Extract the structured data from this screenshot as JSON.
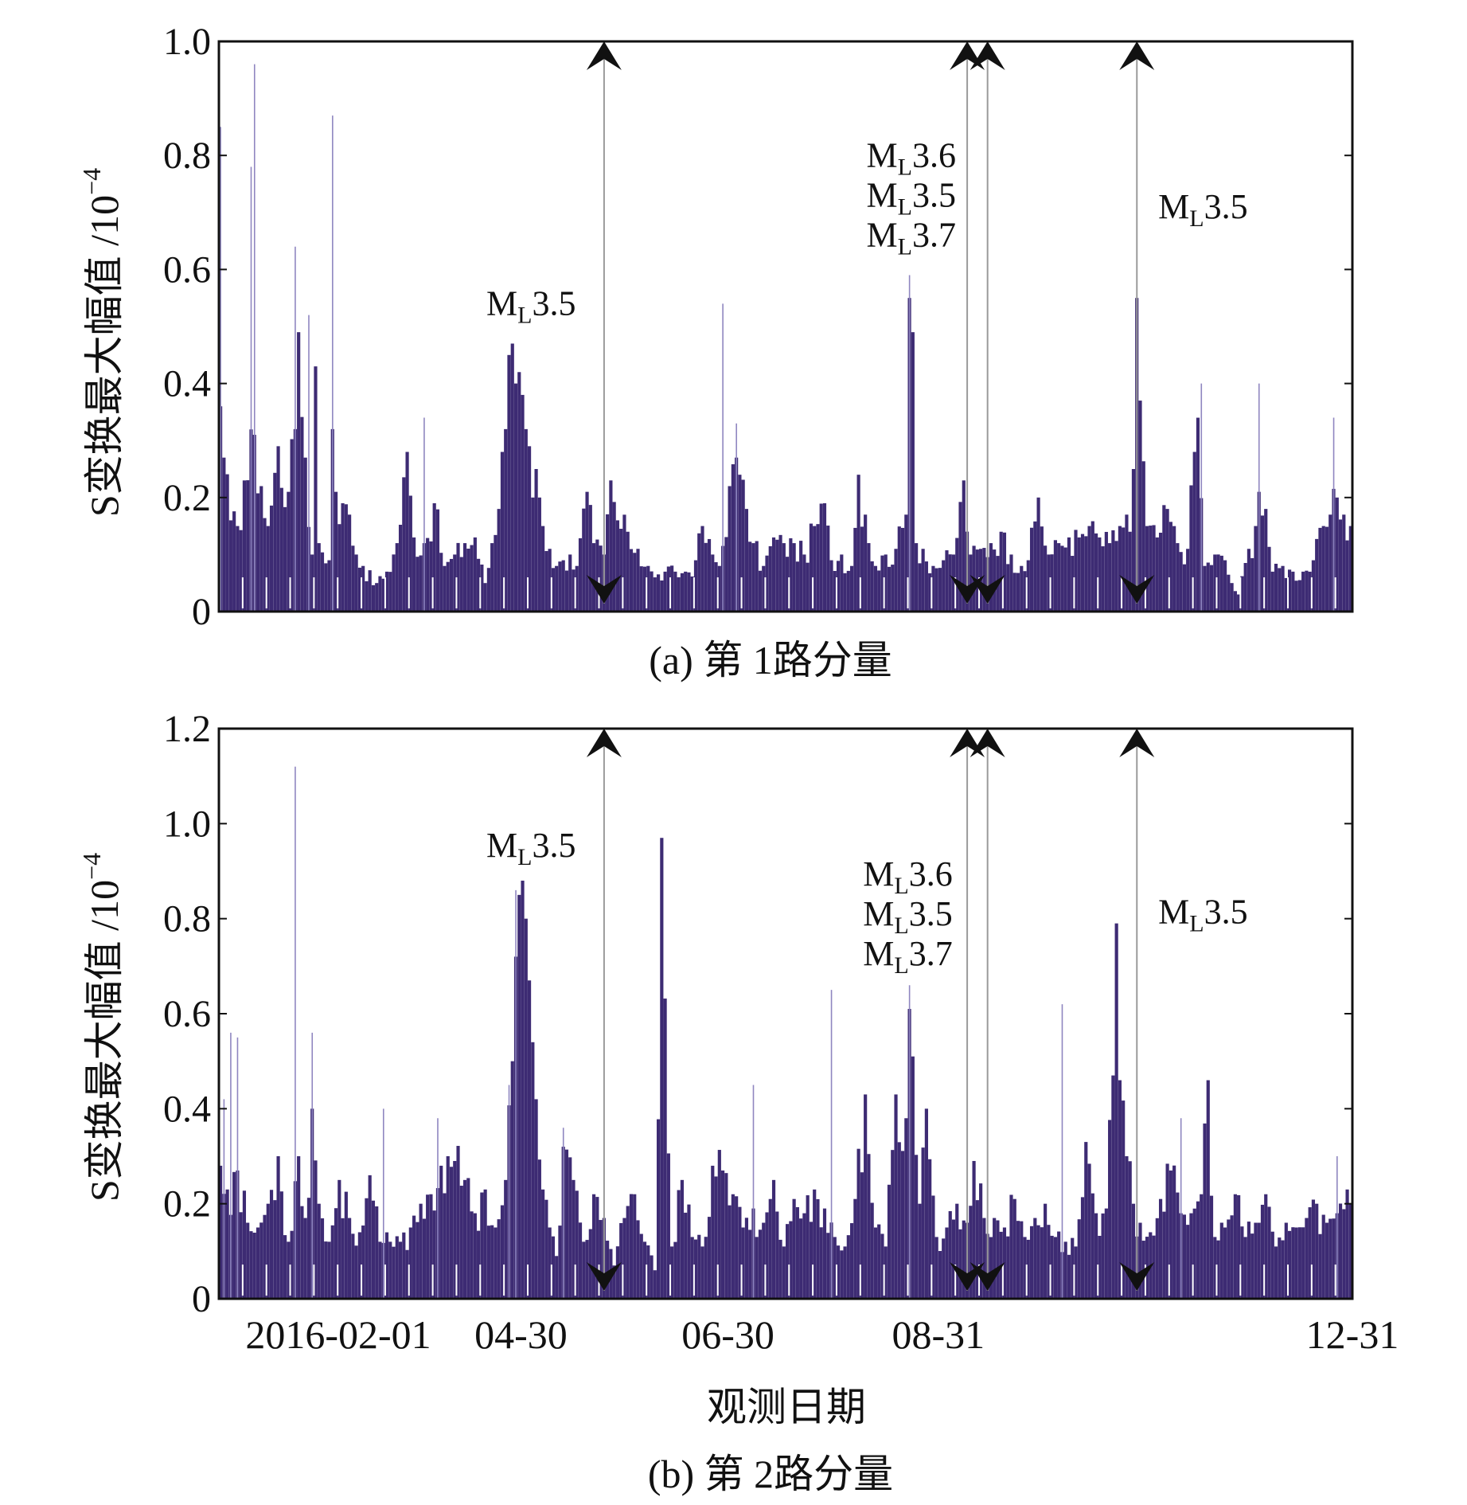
{
  "figure": {
    "xlabel": "观测日期",
    "bar_color": "#3d2b73",
    "arrow_line_color": "#9a9a9a",
    "arrow_color": "#111111"
  },
  "chart_data": [
    {
      "id": "a",
      "type": "bar",
      "caption": "(a) 第 1路分量",
      "ylabel_main": "S变换最大幅值 /10",
      "ylabel_exp": "−4",
      "ylim": [
        0,
        1.0
      ],
      "yticks": [
        0,
        0.2,
        0.4,
        0.6,
        0.8,
        1.0
      ],
      "ytick_labels": [
        "0",
        "0.2",
        "0.4",
        "0.6",
        "0.8",
        "1.0"
      ],
      "x_start_date": "2016-02-01",
      "n_days": 334,
      "event_days": [
        113,
        220,
        226,
        270
      ],
      "annotations": [
        {
          "day": 92,
          "level": 0.52,
          "lines": [
            "3.5"
          ]
        },
        {
          "day": 204,
          "level": 0.78,
          "lines": [
            "3.6",
            "3.5",
            "3.7"
          ]
        },
        {
          "day": 290,
          "level": 0.69,
          "lines": [
            "3.5"
          ]
        }
      ],
      "peaks": [
        [
          0,
          0.36
        ],
        [
          1,
          0.27
        ],
        [
          3,
          0.16
        ],
        [
          5,
          0.15
        ],
        [
          7,
          0.23
        ],
        [
          10,
          0.31
        ],
        [
          12,
          0.22
        ],
        [
          14,
          0.15
        ],
        [
          17,
          0.29
        ],
        [
          20,
          0.21
        ],
        [
          22,
          0.32
        ],
        [
          23,
          0.49
        ],
        [
          25,
          0.27
        ],
        [
          27,
          0.1
        ],
        [
          28,
          0.43
        ],
        [
          29,
          0.12
        ],
        [
          32,
          0.09
        ],
        [
          33,
          0.32
        ],
        [
          34,
          0.21
        ],
        [
          36,
          0.19
        ],
        [
          38,
          0.17
        ],
        [
          40,
          0.1
        ],
        [
          42,
          0.08
        ],
        [
          46,
          0.05
        ],
        [
          49,
          0.07
        ],
        [
          52,
          0.12
        ],
        [
          55,
          0.28
        ],
        [
          57,
          0.13
        ],
        [
          60,
          0.12
        ],
        [
          63,
          0.19
        ],
        [
          66,
          0.08
        ],
        [
          69,
          0.1
        ],
        [
          72,
          0.12
        ],
        [
          75,
          0.13
        ],
        [
          78,
          0.05
        ],
        [
          80,
          0.12
        ],
        [
          82,
          0.18
        ],
        [
          83,
          0.28
        ],
        [
          84,
          0.32
        ],
        [
          85,
          0.45
        ],
        [
          86,
          0.47
        ],
        [
          87,
          0.4
        ],
        [
          88,
          0.42
        ],
        [
          89,
          0.38
        ],
        [
          90,
          0.32
        ],
        [
          91,
          0.29
        ],
        [
          92,
          0.2
        ],
        [
          93,
          0.25
        ],
        [
          94,
          0.2
        ],
        [
          95,
          0.15
        ],
        [
          97,
          0.11
        ],
        [
          99,
          0.08
        ],
        [
          101,
          0.09
        ],
        [
          103,
          0.1
        ],
        [
          105,
          0.08
        ],
        [
          108,
          0.21
        ],
        [
          110,
          0.12
        ],
        [
          113,
          0.1
        ],
        [
          115,
          0.23
        ],
        [
          117,
          0.16
        ],
        [
          120,
          0.14
        ],
        [
          123,
          0.11
        ],
        [
          126,
          0.08
        ],
        [
          128,
          0.06
        ],
        [
          131,
          0.07
        ],
        [
          134,
          0.07
        ],
        [
          137,
          0.07
        ],
        [
          140,
          0.09
        ],
        [
          142,
          0.15
        ],
        [
          145,
          0.1
        ],
        [
          147,
          0.08
        ],
        [
          150,
          0.22
        ],
        [
          152,
          0.27
        ],
        [
          153,
          0.24
        ],
        [
          155,
          0.18
        ],
        [
          157,
          0.12
        ],
        [
          160,
          0.08
        ],
        [
          163,
          0.13
        ],
        [
          166,
          0.12
        ],
        [
          169,
          0.12
        ],
        [
          172,
          0.1
        ],
        [
          175,
          0.15
        ],
        [
          178,
          0.19
        ],
        [
          180,
          0.09
        ],
        [
          183,
          0.1
        ],
        [
          186,
          0.08
        ],
        [
          188,
          0.24
        ],
        [
          190,
          0.17
        ],
        [
          193,
          0.08
        ],
        [
          196,
          0.1
        ],
        [
          199,
          0.11
        ],
        [
          202,
          0.17
        ],
        [
          203,
          0.55
        ],
        [
          204,
          0.49
        ],
        [
          205,
          0.12
        ],
        [
          207,
          0.11
        ],
        [
          210,
          0.08
        ],
        [
          213,
          0.09
        ],
        [
          216,
          0.1
        ],
        [
          219,
          0.23
        ],
        [
          221,
          0.1
        ],
        [
          224,
          0.11
        ],
        [
          227,
          0.12
        ],
        [
          230,
          0.14
        ],
        [
          233,
          0.1
        ],
        [
          236,
          0.08
        ],
        [
          238,
          0.09
        ],
        [
          241,
          0.2
        ],
        [
          244,
          0.1
        ],
        [
          247,
          0.12
        ],
        [
          250,
          0.13
        ],
        [
          253,
          0.13
        ],
        [
          256,
          0.15
        ],
        [
          259,
          0.13
        ],
        [
          262,
          0.12
        ],
        [
          265,
          0.15
        ],
        [
          267,
          0.17
        ],
        [
          268,
          0.14
        ],
        [
          269,
          0.25
        ],
        [
          270,
          0.55
        ],
        [
          271,
          0.37
        ],
        [
          273,
          0.15
        ],
        [
          276,
          0.13
        ],
        [
          279,
          0.18
        ],
        [
          282,
          0.12
        ],
        [
          285,
          0.11
        ],
        [
          287,
          0.28
        ],
        [
          288,
          0.34
        ],
        [
          290,
          0.08
        ],
        [
          293,
          0.1
        ],
        [
          296,
          0.09
        ],
        [
          298,
          0.05
        ],
        [
          300,
          0.03
        ],
        [
          303,
          0.11
        ],
        [
          305,
          0.15
        ],
        [
          306,
          0.21
        ],
        [
          308,
          0.18
        ],
        [
          310,
          0.07
        ],
        [
          313,
          0.08
        ],
        [
          316,
          0.07
        ],
        [
          319,
          0.07
        ],
        [
          322,
          0.09
        ],
        [
          325,
          0.15
        ],
        [
          327,
          0.17
        ],
        [
          329,
          0.2
        ],
        [
          331,
          0.17
        ],
        [
          333,
          0.15
        ]
      ],
      "spikes": [
        [
          0,
          0.85
        ],
        [
          9,
          0.78
        ],
        [
          10,
          0.96
        ],
        [
          22,
          0.64
        ],
        [
          26,
          0.52
        ],
        [
          33,
          0.87
        ],
        [
          60,
          0.34
        ],
        [
          148,
          0.54
        ],
        [
          152,
          0.33
        ],
        [
          203,
          0.59
        ],
        [
          289,
          0.4
        ],
        [
          306,
          0.4
        ],
        [
          328,
          0.34
        ]
      ]
    },
    {
      "id": "b",
      "type": "bar",
      "caption": "(b) 第 2路分量",
      "ylabel_main": "S变换最大幅值 /10",
      "ylabel_exp": "−4",
      "ylim": [
        0,
        1.2
      ],
      "yticks": [
        0,
        0.2,
        0.4,
        0.6,
        0.8,
        1.0,
        1.2
      ],
      "ytick_labels": [
        "0",
        "0.2",
        "0.4",
        "0.6",
        "0.8",
        "1.0",
        "1.2"
      ],
      "x_start_date": "2016-02-01",
      "n_days": 334,
      "x_ticks": [
        {
          "day": 0,
          "label": "2016-02-01"
        },
        {
          "day": 89,
          "label": "04-30"
        },
        {
          "day": 150,
          "label": "06-30"
        },
        {
          "day": 212,
          "label": "08-31"
        },
        {
          "day": 334,
          "label": "12-31"
        }
      ],
      "event_days": [
        113,
        220,
        226,
        270
      ],
      "annotations": [
        {
          "day": 92,
          "level": 0.93,
          "lines": [
            "3.5"
          ]
        },
        {
          "day": 203,
          "level": 0.87,
          "lines": [
            "3.6",
            "3.5",
            "3.7"
          ]
        },
        {
          "day": 290,
          "level": 0.79,
          "lines": [
            "3.5"
          ]
        }
      ],
      "peaks": [
        [
          0,
          0.28
        ],
        [
          2,
          0.23
        ],
        [
          5,
          0.27
        ],
        [
          8,
          0.16
        ],
        [
          11,
          0.15
        ],
        [
          14,
          0.2
        ],
        [
          17,
          0.3
        ],
        [
          20,
          0.12
        ],
        [
          23,
          0.3
        ],
        [
          25,
          0.17
        ],
        [
          27,
          0.4
        ],
        [
          29,
          0.2
        ],
        [
          32,
          0.12
        ],
        [
          35,
          0.25
        ],
        [
          38,
          0.17
        ],
        [
          41,
          0.14
        ],
        [
          44,
          0.26
        ],
        [
          47,
          0.12
        ],
        [
          50,
          0.12
        ],
        [
          53,
          0.12
        ],
        [
          56,
          0.15
        ],
        [
          59,
          0.2
        ],
        [
          62,
          0.22
        ],
        [
          65,
          0.28
        ],
        [
          67,
          0.3
        ],
        [
          69,
          0.29
        ],
        [
          72,
          0.25
        ],
        [
          75,
          0.18
        ],
        [
          78,
          0.23
        ],
        [
          81,
          0.15
        ],
        [
          84,
          0.25
        ],
        [
          86,
          0.5
        ],
        [
          87,
          0.72
        ],
        [
          88,
          0.85
        ],
        [
          89,
          0.88
        ],
        [
          90,
          0.8
        ],
        [
          91,
          0.67
        ],
        [
          92,
          0.54
        ],
        [
          93,
          0.42
        ],
        [
          95,
          0.23
        ],
        [
          97,
          0.15
        ],
        [
          99,
          0.09
        ],
        [
          101,
          0.32
        ],
        [
          104,
          0.25
        ],
        [
          107,
          0.12
        ],
        [
          110,
          0.22
        ],
        [
          113,
          0.17
        ],
        [
          116,
          0.07
        ],
        [
          119,
          0.17
        ],
        [
          122,
          0.22
        ],
        [
          125,
          0.12
        ],
        [
          128,
          0.06
        ],
        [
          130,
          0.97
        ],
        [
          133,
          0.11
        ],
        [
          136,
          0.25
        ],
        [
          139,
          0.13
        ],
        [
          142,
          0.11
        ],
        [
          145,
          0.28
        ],
        [
          148,
          0.27
        ],
        [
          151,
          0.22
        ],
        [
          154,
          0.15
        ],
        [
          157,
          0.19
        ],
        [
          160,
          0.16
        ],
        [
          163,
          0.25
        ],
        [
          166,
          0.11
        ],
        [
          169,
          0.21
        ],
        [
          172,
          0.18
        ],
        [
          175,
          0.23
        ],
        [
          178,
          0.19
        ],
        [
          181,
          0.13
        ],
        [
          184,
          0.11
        ],
        [
          187,
          0.21
        ],
        [
          190,
          0.43
        ],
        [
          193,
          0.15
        ],
        [
          196,
          0.11
        ],
        [
          199,
          0.43
        ],
        [
          202,
          0.38
        ],
        [
          203,
          0.61
        ],
        [
          204,
          0.51
        ],
        [
          206,
          0.2
        ],
        [
          208,
          0.4
        ],
        [
          211,
          0.13
        ],
        [
          214,
          0.15
        ],
        [
          217,
          0.2
        ],
        [
          220,
          0.16
        ],
        [
          222,
          0.29
        ],
        [
          225,
          0.17
        ],
        [
          228,
          0.17
        ],
        [
          231,
          0.15
        ],
        [
          234,
          0.21
        ],
        [
          237,
          0.13
        ],
        [
          240,
          0.17
        ],
        [
          243,
          0.2
        ],
        [
          246,
          0.13
        ],
        [
          249,
          0.12
        ],
        [
          252,
          0.11
        ],
        [
          255,
          0.33
        ],
        [
          258,
          0.18
        ],
        [
          261,
          0.19
        ],
        [
          263,
          0.47
        ],
        [
          264,
          0.79
        ],
        [
          265,
          0.46
        ],
        [
          267,
          0.3
        ],
        [
          269,
          0.2
        ],
        [
          271,
          0.16
        ],
        [
          274,
          0.14
        ],
        [
          277,
          0.21
        ],
        [
          280,
          0.27
        ],
        [
          283,
          0.18
        ],
        [
          286,
          0.18
        ],
        [
          289,
          0.22
        ],
        [
          291,
          0.46
        ],
        [
          293,
          0.13
        ],
        [
          296,
          0.15
        ],
        [
          299,
          0.22
        ],
        [
          302,
          0.13
        ],
        [
          305,
          0.16
        ],
        [
          308,
          0.22
        ],
        [
          311,
          0.11
        ],
        [
          314,
          0.16
        ],
        [
          317,
          0.15
        ],
        [
          320,
          0.17
        ],
        [
          323,
          0.2
        ],
        [
          326,
          0.16
        ],
        [
          329,
          0.18
        ],
        [
          332,
          0.23
        ],
        [
          333,
          0.2
        ]
      ],
      "spikes": [
        [
          1,
          0.42
        ],
        [
          3,
          0.56
        ],
        [
          5,
          0.55
        ],
        [
          22,
          1.12
        ],
        [
          27,
          0.56
        ],
        [
          48,
          0.4
        ],
        [
          64,
          0.38
        ],
        [
          85,
          0.45
        ],
        [
          87,
          0.86
        ],
        [
          101,
          0.36
        ],
        [
          157,
          0.45
        ],
        [
          180,
          0.65
        ],
        [
          203,
          0.66
        ],
        [
          248,
          0.62
        ],
        [
          283,
          0.38
        ],
        [
          329,
          0.3
        ]
      ]
    }
  ]
}
